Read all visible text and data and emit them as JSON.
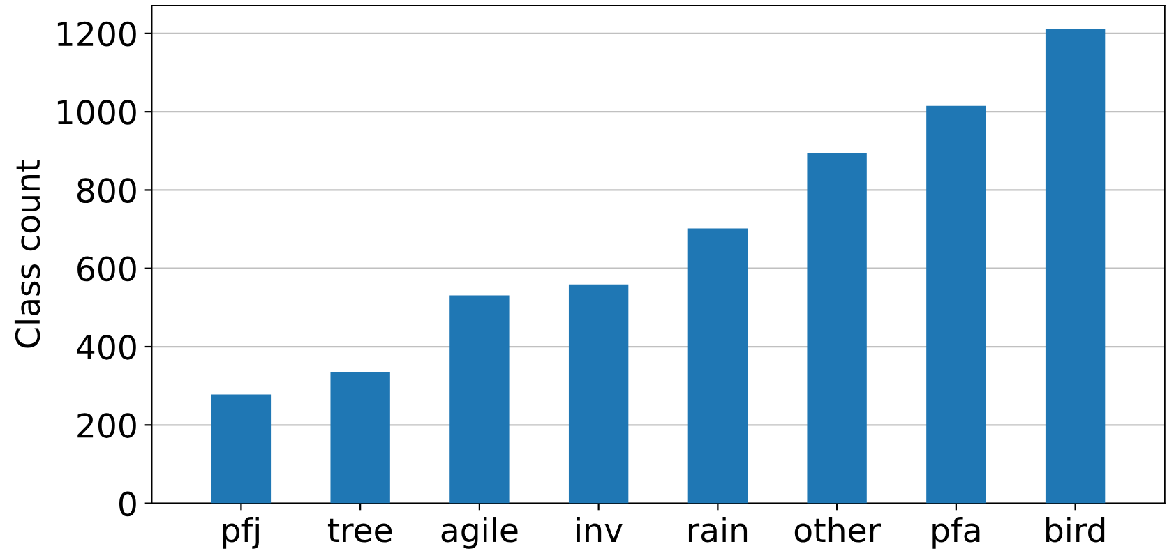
{
  "chart_data": {
    "type": "bar",
    "ylabel": "Class count",
    "categories": [
      "pfj",
      "tree",
      "agile",
      "inv",
      "rain",
      "other",
      "pfa",
      "bird"
    ],
    "values": [
      278,
      335,
      531,
      559,
      702,
      894,
      1015,
      1211
    ],
    "color": "#1f77b4",
    "ylim": [
      0,
      1271
    ],
    "yticks": [
      0,
      200,
      400,
      600,
      800,
      1000,
      1200
    ],
    "grid": "y"
  }
}
